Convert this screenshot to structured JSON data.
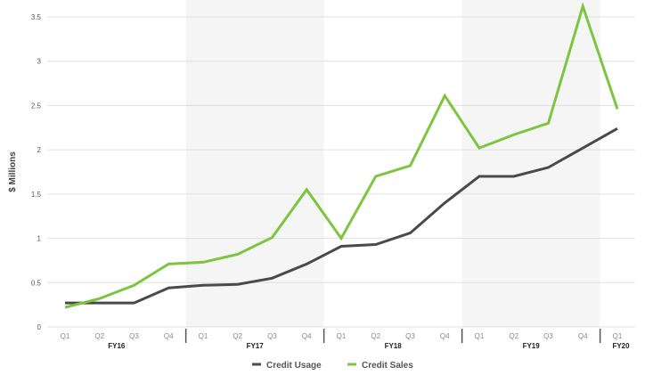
{
  "chart_data": {
    "type": "line",
    "title": "",
    "xlabel": "",
    "ylabel": "$ Millions",
    "ylim": [
      0,
      3.5
    ],
    "yticks": [
      "0",
      "0.5",
      "1",
      "1.5",
      "2",
      "2.5",
      "3",
      "3.5"
    ],
    "grid": true,
    "legend": "bottom",
    "categories": [
      "Q1",
      "Q2",
      "Q3",
      "Q4",
      "Q1",
      "Q2",
      "Q3",
      "Q4",
      "Q1",
      "Q2",
      "Q3",
      "Q4",
      "Q1",
      "Q2",
      "Q3",
      "Q4",
      "Q1"
    ],
    "groups": [
      {
        "label": "FY16",
        "count": 4,
        "shaded": false
      },
      {
        "label": "FY17",
        "count": 4,
        "shaded": true
      },
      {
        "label": "FY18",
        "count": 4,
        "shaded": false
      },
      {
        "label": "FY19",
        "count": 4,
        "shaded": true
      },
      {
        "label": "FY20",
        "count": 1,
        "shaded": false
      }
    ],
    "series": [
      {
        "name": "Credit Usage",
        "color": "#4a4a4a",
        "values": [
          0.27,
          0.27,
          0.27,
          0.44,
          0.47,
          0.48,
          0.55,
          0.71,
          0.91,
          0.93,
          1.06,
          1.4,
          1.7,
          1.7,
          1.8,
          2.02,
          2.24
        ]
      },
      {
        "name": "Credit Sales",
        "color": "#7dc540",
        "values": [
          0.22,
          0.32,
          0.47,
          0.71,
          0.73,
          0.82,
          1.01,
          1.55,
          1.0,
          1.7,
          1.82,
          2.61,
          2.02,
          2.17,
          2.3,
          3.62,
          2.46
        ]
      }
    ]
  }
}
